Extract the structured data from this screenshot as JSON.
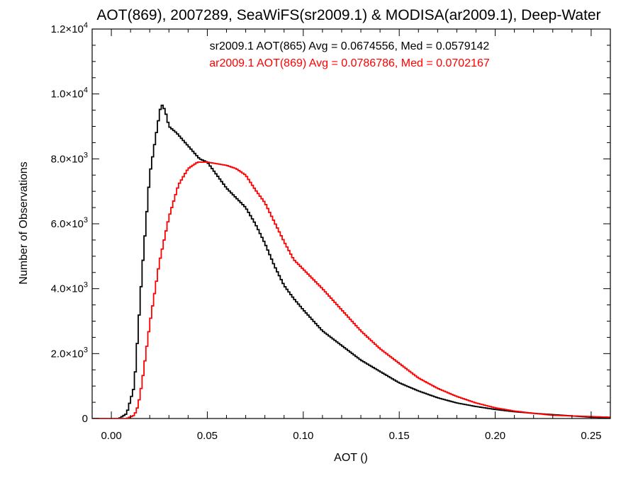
{
  "chart_data": {
    "type": "line",
    "style": "step-histogram",
    "title": "AOT(869), 2007289, SeaWiFS(sr2009.1) & MODISA(ar2009.1), Deep-Water",
    "xlabel": "AOT ()",
    "ylabel": "Number of Observations",
    "xlim": [
      -0.01,
      0.26
    ],
    "ylim": [
      0,
      12000
    ],
    "x_ticks": [
      0.0,
      0.05,
      0.1,
      0.15,
      0.2,
      0.25
    ],
    "x_tick_labels": [
      "0.00",
      "0.05",
      "0.10",
      "0.15",
      "0.20",
      "0.25"
    ],
    "y_ticks": [
      0,
      2000,
      4000,
      6000,
      8000,
      10000,
      12000
    ],
    "y_tick_labels": [
      {
        "mantissa": "0",
        "exponent": ""
      },
      {
        "mantissa": "2.0×10",
        "exponent": "3"
      },
      {
        "mantissa": "4.0×10",
        "exponent": "3"
      },
      {
        "mantissa": "6.0×10",
        "exponent": "3"
      },
      {
        "mantissa": "8.0×10",
        "exponent": "3"
      },
      {
        "mantissa": "1.0×10",
        "exponent": "4"
      },
      {
        "mantissa": "1.2×10",
        "exponent": "4"
      }
    ],
    "grid": false,
    "legend_position": "top-center",
    "bin_width": 0.001,
    "series": [
      {
        "name": "sr2009.1 AOT(865) Avg = 0.0674556, Med = 0.0579142",
        "color": "#000000",
        "x": [
          -0.01,
          0.004,
          0.008,
          0.012,
          0.016,
          0.02,
          0.024,
          0.026,
          0.028,
          0.03,
          0.034,
          0.04,
          0.046,
          0.05,
          0.055,
          0.06,
          0.065,
          0.07,
          0.075,
          0.08,
          0.085,
          0.09,
          0.095,
          0.1,
          0.11,
          0.12,
          0.13,
          0.14,
          0.15,
          0.16,
          0.17,
          0.18,
          0.19,
          0.2,
          0.21,
          0.22,
          0.23,
          0.24,
          0.25,
          0.26
        ],
        "y": [
          0,
          0,
          150,
          1000,
          4500,
          7500,
          9000,
          9700,
          9500,
          9000,
          8800,
          8400,
          8000,
          7900,
          7500,
          7100,
          6800,
          6500,
          6000,
          5400,
          4700,
          4100,
          3700,
          3350,
          2700,
          2250,
          1800,
          1450,
          1100,
          850,
          640,
          480,
          370,
          280,
          210,
          160,
          120,
          80,
          40,
          20
        ]
      },
      {
        "name": "ar2009.1 AOT(869) Avg = 0.0786786, Med = 0.0702167",
        "color": "#ff0000",
        "x": [
          -0.01,
          0.008,
          0.012,
          0.014,
          0.016,
          0.018,
          0.02,
          0.025,
          0.03,
          0.035,
          0.04,
          0.045,
          0.05,
          0.055,
          0.06,
          0.065,
          0.07,
          0.075,
          0.08,
          0.085,
          0.09,
          0.095,
          0.1,
          0.11,
          0.12,
          0.13,
          0.14,
          0.15,
          0.16,
          0.17,
          0.18,
          0.19,
          0.2,
          0.21,
          0.22,
          0.23,
          0.24,
          0.25,
          0.26
        ],
        "y": [
          0,
          0,
          100,
          400,
          1100,
          2000,
          2900,
          4800,
          6200,
          7200,
          7700,
          7900,
          7900,
          7850,
          7800,
          7700,
          7500,
          7050,
          6650,
          6050,
          5450,
          4900,
          4600,
          4000,
          3350,
          2700,
          2150,
          1700,
          1250,
          930,
          680,
          480,
          330,
          230,
          160,
          100,
          80,
          60,
          40
        ]
      }
    ]
  }
}
